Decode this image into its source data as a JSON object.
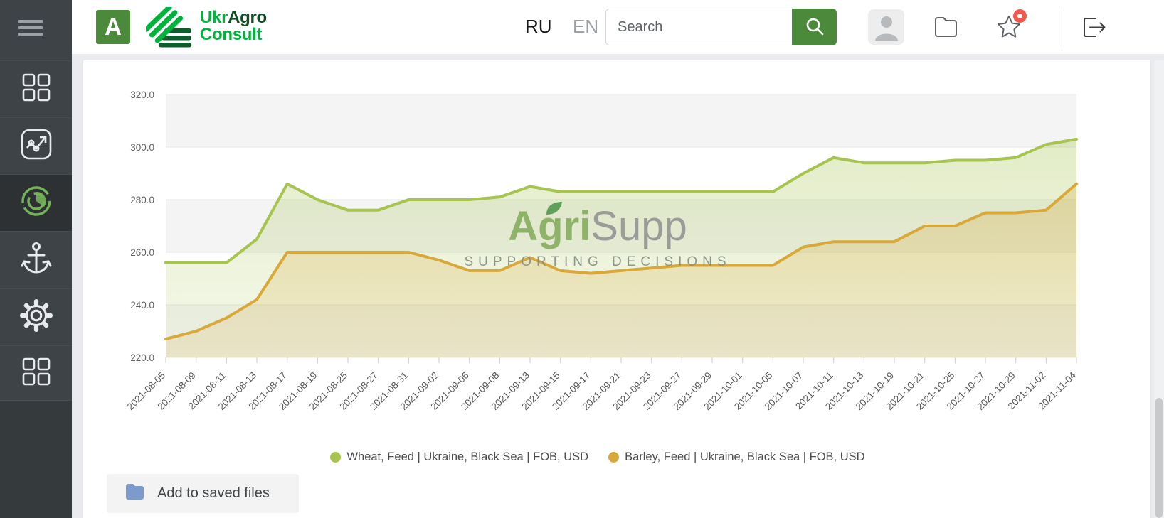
{
  "sidebar": {
    "items": [
      {
        "id": "dashboard",
        "icon": "grid-icon",
        "active": false
      },
      {
        "id": "trends",
        "icon": "trend-chart-icon",
        "active": false
      },
      {
        "id": "prices",
        "icon": "donut-chart-icon",
        "active": true
      },
      {
        "id": "ports",
        "icon": "anchor-icon",
        "active": false
      },
      {
        "id": "settings",
        "icon": "gear-icon",
        "active": false
      },
      {
        "id": "apps",
        "icon": "grid-icon",
        "active": false
      }
    ]
  },
  "header": {
    "logo_letter": "A",
    "brand": {
      "part1": "Ukr",
      "part2": "Agro",
      "part3": "Consult"
    },
    "lang": [
      {
        "code": "RU",
        "active": true
      },
      {
        "code": "EN",
        "active": false
      }
    ],
    "search": {
      "placeholder": "Search",
      "value": ""
    }
  },
  "watermark": {
    "title_green": "Agri",
    "title_gray": "Supp",
    "tagline": "SUPPORTING DECISIONS"
  },
  "actions": {
    "add_to_saved_files": "Add to saved files"
  },
  "colors": {
    "accent_green": "#4c8a3b",
    "brand_green": "#00b33c",
    "brand_dark_green": "#0d4f22",
    "badge_red": "#f2564d",
    "sidebar_bg": "#3e4347",
    "wheat_line": "#a6c44f",
    "barley_line": "#d8a93a"
  },
  "chart_data": {
    "type": "area",
    "title": "",
    "xlabel": "",
    "ylabel": "",
    "ylim": [
      220,
      320
    ],
    "yticks": [
      220,
      240,
      260,
      280,
      300,
      320
    ],
    "grid": true,
    "legend_position": "bottom",
    "x": [
      "2021-08-05",
      "2021-08-09",
      "2021-08-11",
      "2021-08-13",
      "2021-08-17",
      "2021-08-19",
      "2021-08-25",
      "2021-08-27",
      "2021-08-31",
      "2021-09-02",
      "2021-09-06",
      "2021-09-08",
      "2021-09-13",
      "2021-09-15",
      "2021-09-17",
      "2021-09-21",
      "2021-09-23",
      "2021-09-27",
      "2021-09-29",
      "2021-10-01",
      "2021-10-05",
      "2021-10-07",
      "2021-10-11",
      "2021-10-13",
      "2021-10-19",
      "2021-10-21",
      "2021-10-25",
      "2021-10-27",
      "2021-10-29",
      "2021-11-02",
      "2021-11-04"
    ],
    "series": [
      {
        "name": "Wheat, Feed | Ukraine, Black Sea | FOB, USD",
        "color": "#a6c44f",
        "values": [
          256,
          256,
          256,
          265,
          286,
          280,
          276,
          276,
          280,
          280,
          280,
          281,
          285,
          283,
          283,
          283,
          283,
          283,
          283,
          283,
          283,
          290,
          296,
          294,
          294,
          294,
          295,
          295,
          296,
          301,
          303
        ]
      },
      {
        "name": "Barley, Feed | Ukraine, Black Sea | FOB, USD",
        "color": "#d8a93a",
        "values": [
          227,
          230,
          235,
          242,
          260,
          260,
          260,
          260,
          260,
          257,
          253,
          253,
          258,
          253,
          252,
          253,
          254,
          255,
          255,
          255,
          255,
          262,
          264,
          264,
          264,
          270,
          270,
          275,
          275,
          276,
          286
        ]
      }
    ]
  }
}
